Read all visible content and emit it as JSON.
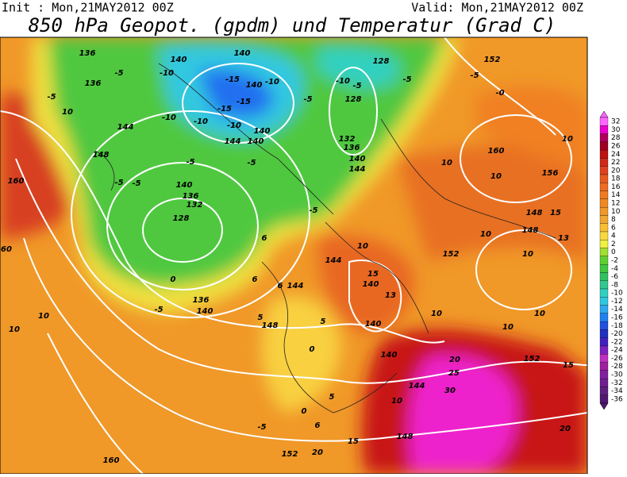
{
  "header": {
    "init": "Init : Mon,21MAY2012 00Z",
    "valid": "Valid: Mon,21MAY2012 00Z",
    "title": "850 hPa Geopot. (gpdm) und Temperatur (Grad C)"
  },
  "colorbar": {
    "labels": [
      "32",
      "30",
      "28",
      "26",
      "24",
      "22",
      "20",
      "18",
      "16",
      "14",
      "12",
      "10",
      "8",
      "6",
      "4",
      "2",
      "0",
      "-2",
      "-4",
      "-6",
      "-8",
      "-10",
      "-12",
      "-14",
      "-16",
      "-18",
      "-20",
      "-22",
      "-24",
      "-26",
      "-28",
      "-30",
      "-32",
      "-34",
      "-36"
    ],
    "colors": [
      "#ff66ff",
      "#ee00cc",
      "#b0005a",
      "#a00020",
      "#c01010",
      "#d02818",
      "#e04020",
      "#e85a20",
      "#f06a20",
      "#f07a20",
      "#f08820",
      "#f09828",
      "#f0a830",
      "#f8c030",
      "#f8d840",
      "#f0f040",
      "#a0e030",
      "#60d030",
      "#40c840",
      "#30c060",
      "#30c890",
      "#30d0c0",
      "#30c8e0",
      "#30a8f0",
      "#2080f0",
      "#2050e0",
      "#2030c0",
      "#4020c0",
      "#8020c0",
      "#c030c0",
      "#a020a0",
      "#8020a0",
      "#702090",
      "#602080",
      "#501870"
    ]
  },
  "contour_labels": [
    "136",
    "140",
    "140",
    "128",
    "152",
    "-5",
    "-10",
    "-15",
    "140",
    "-10",
    "-10",
    "-5",
    "-5",
    "-5",
    "-0",
    "136",
    "-5",
    "10",
    "-15",
    "-15",
    "128",
    "-5",
    "-10",
    "-10",
    "-10",
    "140",
    "144",
    "144",
    "140",
    "132",
    "136",
    "10",
    "148",
    "160",
    "140",
    "-5",
    "-5",
    "144",
    "10",
    "10",
    "156",
    "160",
    "-5",
    "-5",
    "140",
    "136",
    "132",
    "-5",
    "128",
    "148",
    "15",
    "148",
    "10",
    "13",
    "6",
    "10",
    "152",
    "10",
    "144",
    "15",
    "6",
    "6",
    "144",
    "140",
    "13",
    "60",
    "10",
    "10",
    "0",
    "136",
    "140",
    "-5",
    "5",
    "148",
    "5",
    "140",
    "10",
    "10",
    "10",
    "140",
    "20",
    "25",
    "152",
    "15",
    "0",
    "144",
    "30",
    "5",
    "10",
    "148",
    "20",
    "15",
    "152",
    "20",
    "160",
    "6",
    "0",
    "-5"
  ]
}
